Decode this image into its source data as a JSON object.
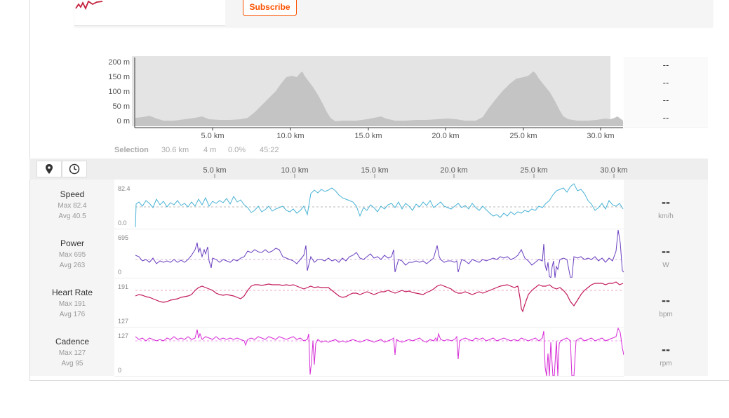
{
  "header": {
    "subscribe_label": "Subscribe"
  },
  "elevation": {
    "y_labels": [
      "200 m",
      "150 m",
      "100 m",
      "50 m",
      "0 m"
    ],
    "x_labels": [
      "5.0 km",
      "10.0 km",
      "15.0 km",
      "20.0 km",
      "25.0 km",
      "30.0 km"
    ],
    "side_values": [
      "--",
      "--",
      "--",
      "--"
    ]
  },
  "selection": {
    "label": "Selection",
    "distance": "30.6 km",
    "elevation": "4 m",
    "grade": "0.0%",
    "time": "45:22"
  },
  "toolbar": {
    "x_labels": [
      "5.0 km",
      "10.0 km",
      "15.0 km",
      "20.0 km",
      "25.0 km",
      "30.0 km"
    ],
    "buttons": [
      "map-pin-icon",
      "clock-icon"
    ]
  },
  "streams": [
    {
      "name": "Speed",
      "max": "Max 82.4",
      "avg": "Avg 40.5",
      "value": "--",
      "unit": "km/h",
      "y_top": "82.4",
      "y_bottom": "0.0",
      "color": "#4ab3d6"
    },
    {
      "name": "Power",
      "max": "Max 695",
      "avg": "Avg 263",
      "value": "--",
      "unit": "W",
      "y_top": "695",
      "y_bottom": "0",
      "color": "#6a3fc0"
    },
    {
      "name": "Heart Rate",
      "max": "Max 191",
      "avg": "Avg 176",
      "value": "--",
      "unit": "bpm",
      "y_top": "191",
      "y_bottom": "127",
      "color": "#c2185b"
    },
    {
      "name": "Cadence",
      "max": "Max 127",
      "avg": "Avg 95",
      "value": "--",
      "unit": "rpm",
      "y_top": "127",
      "y_bottom": "0",
      "color": "#d62ad6"
    }
  ]
}
